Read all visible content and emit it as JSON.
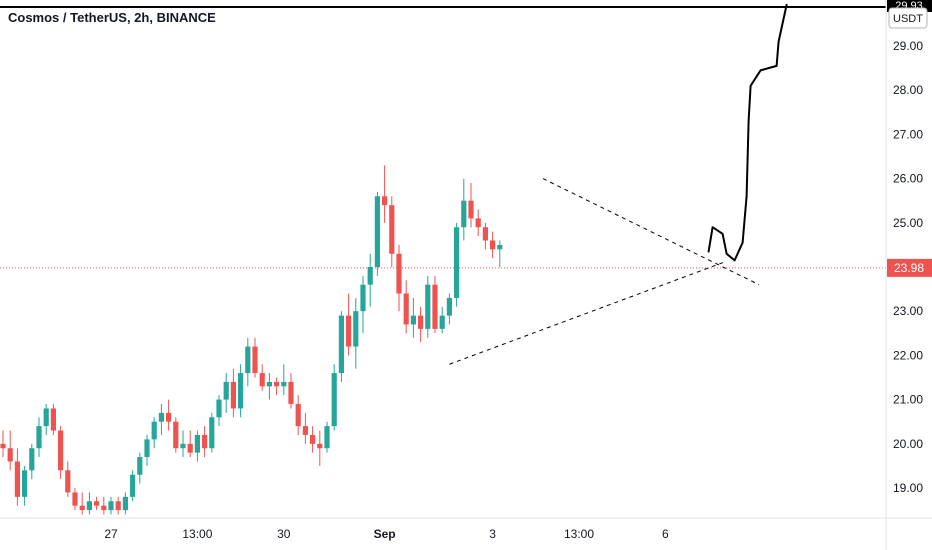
{
  "header": {
    "title": "Cosmos / TetherUS, 2h, BINANCE"
  },
  "currency": "USDT",
  "colors": {
    "up": "#26a69a",
    "down": "#ef5350",
    "price_line": "#ef5350",
    "drawing": "#000000",
    "trend": "#000000"
  },
  "chart_data": {
    "type": "candlestick",
    "title": "Cosmos / TetherUS, 2h, BINANCE",
    "last_price": "23.98",
    "top_price_label": "29.93",
    "ylim": [
      18.4,
      30.0
    ],
    "y_ticks": [
      "19.00",
      "20.00",
      "21.00",
      "22.00",
      "23.00",
      "24.00",
      "25.00",
      "26.00",
      "27.00",
      "28.00",
      "29.00"
    ],
    "x_labels": [
      {
        "label": "27",
        "bar": 15,
        "bold": false
      },
      {
        "label": "13:00",
        "bar": 27,
        "bold": false
      },
      {
        "label": "30",
        "bar": 39,
        "bold": false
      },
      {
        "label": "Sep",
        "bar": 53,
        "bold": true
      },
      {
        "label": "3",
        "bar": 68,
        "bold": false
      },
      {
        "label": "13:00",
        "bar": 80,
        "bold": false
      },
      {
        "label": "6",
        "bar": 92,
        "bold": false
      }
    ],
    "candles": [
      [
        20.0,
        20.3,
        19.7,
        19.9
      ],
      [
        19.9,
        20.3,
        19.4,
        19.6
      ],
      [
        19.6,
        19.9,
        18.6,
        18.8
      ],
      [
        18.8,
        19.5,
        18.6,
        19.4
      ],
      [
        19.4,
        20.0,
        19.2,
        19.9
      ],
      [
        19.9,
        20.6,
        19.7,
        20.4
      ],
      [
        20.4,
        20.9,
        20.2,
        20.8
      ],
      [
        20.8,
        20.9,
        20.2,
        20.3
      ],
      [
        20.3,
        20.4,
        19.2,
        19.4
      ],
      [
        19.4,
        19.6,
        18.8,
        18.9
      ],
      [
        18.9,
        19.0,
        18.5,
        18.6
      ],
      [
        18.6,
        18.9,
        18.4,
        18.5
      ],
      [
        18.5,
        18.9,
        18.4,
        18.7
      ],
      [
        18.7,
        18.8,
        18.5,
        18.6
      ],
      [
        18.6,
        18.8,
        18.4,
        18.5
      ],
      [
        18.5,
        18.8,
        18.4,
        18.7
      ],
      [
        18.7,
        18.8,
        18.4,
        18.5
      ],
      [
        18.5,
        18.9,
        18.4,
        18.8
      ],
      [
        18.8,
        19.4,
        18.7,
        19.3
      ],
      [
        19.3,
        19.8,
        19.1,
        19.7
      ],
      [
        19.7,
        20.2,
        19.5,
        20.1
      ],
      [
        20.1,
        20.6,
        19.9,
        20.5
      ],
      [
        20.5,
        20.9,
        20.2,
        20.7
      ],
      [
        20.7,
        21.0,
        20.3,
        20.5
      ],
      [
        20.5,
        20.6,
        19.8,
        19.9
      ],
      [
        19.9,
        20.3,
        19.7,
        20.0
      ],
      [
        20.0,
        20.3,
        19.7,
        19.8
      ],
      [
        19.8,
        20.3,
        19.6,
        20.2
      ],
      [
        20.2,
        20.4,
        19.7,
        19.9
      ],
      [
        19.9,
        20.7,
        19.8,
        20.6
      ],
      [
        20.6,
        21.1,
        20.4,
        21.0
      ],
      [
        21.0,
        21.6,
        20.7,
        21.4
      ],
      [
        21.4,
        21.7,
        20.6,
        20.8
      ],
      [
        20.8,
        21.8,
        20.6,
        21.6
      ],
      [
        21.6,
        22.4,
        21.3,
        22.2
      ],
      [
        22.2,
        22.4,
        21.5,
        21.6
      ],
      [
        21.6,
        21.8,
        21.2,
        21.3
      ],
      [
        21.3,
        21.6,
        21.0,
        21.4
      ],
      [
        21.4,
        21.5,
        21.1,
        21.3
      ],
      [
        21.3,
        21.8,
        21.1,
        21.4
      ],
      [
        21.4,
        21.6,
        20.8,
        20.9
      ],
      [
        20.9,
        21.1,
        20.2,
        20.4
      ],
      [
        20.4,
        20.7,
        20.0,
        20.2
      ],
      [
        20.2,
        20.4,
        19.8,
        20.0
      ],
      [
        20.0,
        20.3,
        19.5,
        19.9
      ],
      [
        19.9,
        20.5,
        19.8,
        20.4
      ],
      [
        20.4,
        21.8,
        20.3,
        21.6
      ],
      [
        21.6,
        23.0,
        21.4,
        22.9
      ],
      [
        22.9,
        23.4,
        22.0,
        22.2
      ],
      [
        22.2,
        23.3,
        21.7,
        23.0
      ],
      [
        23.0,
        23.8,
        22.5,
        23.6
      ],
      [
        23.6,
        24.3,
        23.1,
        24.0
      ],
      [
        24.0,
        25.7,
        23.8,
        25.6
      ],
      [
        25.6,
        26.3,
        25.0,
        25.4
      ],
      [
        25.4,
        25.6,
        24.0,
        24.3
      ],
      [
        24.3,
        24.5,
        23.0,
        23.4
      ],
      [
        23.4,
        23.7,
        22.5,
        22.7
      ],
      [
        22.7,
        23.3,
        22.4,
        22.9
      ],
      [
        22.9,
        23.1,
        22.3,
        22.6
      ],
      [
        22.6,
        23.8,
        22.4,
        23.6
      ],
      [
        23.6,
        23.8,
        22.5,
        22.6
      ],
      [
        22.6,
        23.1,
        22.5,
        22.9
      ],
      [
        22.9,
        23.4,
        22.7,
        23.3
      ],
      [
        23.3,
        25.0,
        23.1,
        24.9
      ],
      [
        24.9,
        26.0,
        24.6,
        25.5
      ],
      [
        25.5,
        25.9,
        24.9,
        25.1
      ],
      [
        25.1,
        25.3,
        24.7,
        24.9
      ],
      [
        24.9,
        25.0,
        24.4,
        24.6
      ],
      [
        24.6,
        24.8,
        24.2,
        24.4
      ],
      [
        24.4,
        24.6,
        24.0,
        24.5
      ]
    ],
    "forecast_path_end": 29.93
  }
}
